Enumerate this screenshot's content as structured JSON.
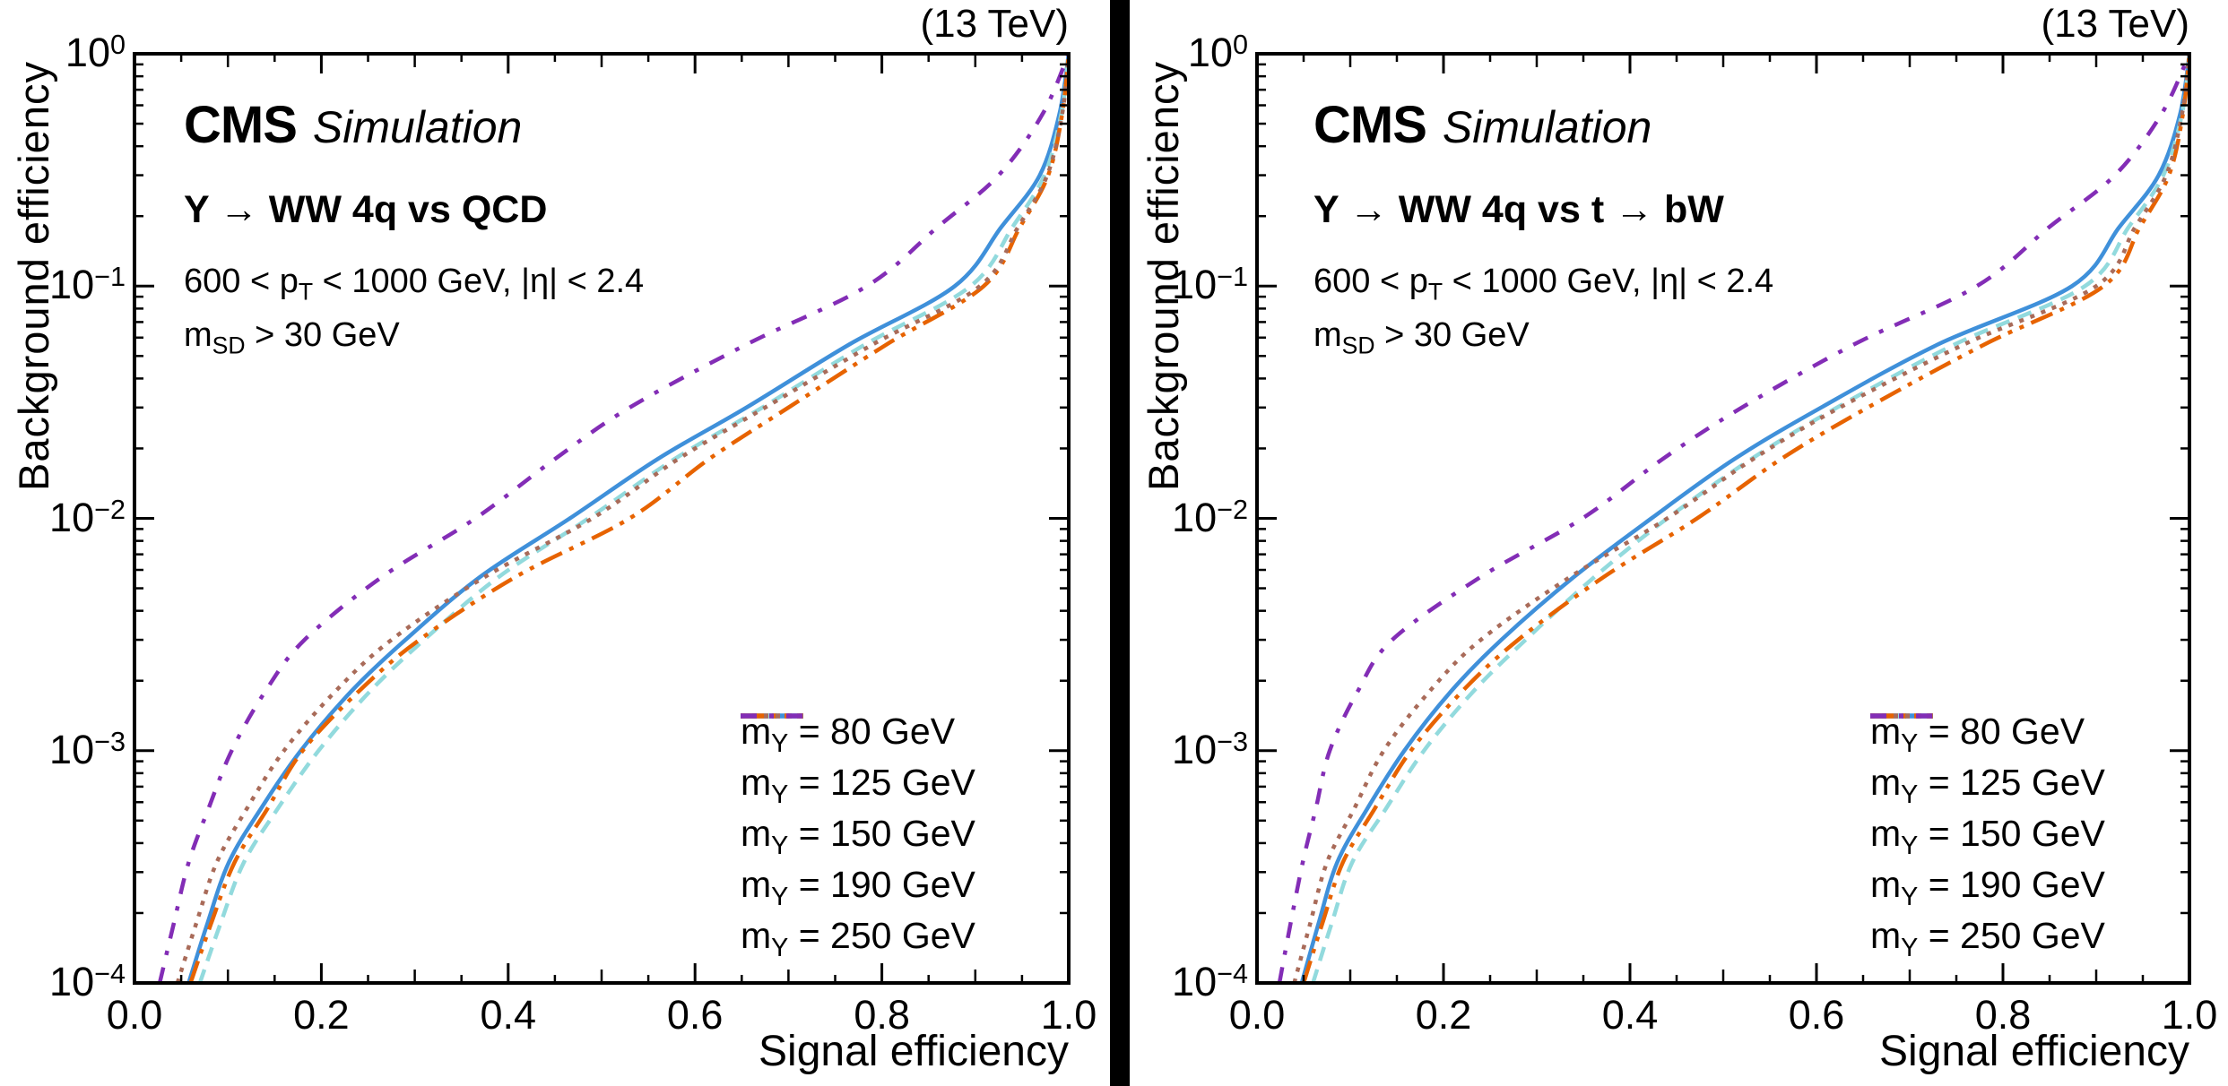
{
  "page": {
    "background": "#ffffff",
    "divider_color": "#000000"
  },
  "chart_data": [
    {
      "type": "line",
      "panel": "left",
      "lumi_label": "(13 TeV)",
      "experiment": "CMS",
      "experiment_sub": "Simulation",
      "process_label": "Y → WW 4q vs QCD",
      "selection_lines": [
        "600 < p~T~ < 1000 GeV, |η| < 2.4",
        "m~SD~ > 30 GeV"
      ],
      "xlabel": "Signal efficiency",
      "ylabel": "Background efficiency",
      "x_axis": {
        "min": 0.0,
        "max": 1.0,
        "major_ticks": [
          0.0,
          0.2,
          0.4,
          0.6,
          0.8,
          1.0
        ],
        "tick_labels": [
          "0.0",
          "0.2",
          "0.4",
          "0.6",
          "0.8",
          "1.0"
        ],
        "minor_step": 0.05
      },
      "y_axis": {
        "scale": "log",
        "min": 0.0001,
        "max": 1.0,
        "decades": [
          1,
          0.1,
          0.01,
          0.001,
          0.0001
        ],
        "tick_labels": [
          "10^{0}",
          "10^{−1}",
          "10^{−2}",
          "10^{−3}",
          "10^{−4}"
        ]
      },
      "legend_position": "lower-right",
      "grid": false,
      "series": [
        {
          "label": "m~Y~ = 80 GeV",
          "color": "#3f90da",
          "dasharray": "",
          "points": [
            [
              0.058,
              0.0001
            ],
            [
              0.078,
              0.00018
            ],
            [
              0.101,
              0.00033
            ],
            [
              0.135,
              0.00056
            ],
            [
              0.178,
              0.001
            ],
            [
              0.232,
              0.0018
            ],
            [
              0.29,
              0.003
            ],
            [
              0.37,
              0.0056
            ],
            [
              0.466,
              0.01
            ],
            [
              0.56,
              0.018
            ],
            [
              0.655,
              0.03
            ],
            [
              0.765,
              0.056
            ],
            [
              0.878,
              0.1
            ],
            [
              0.928,
              0.18
            ],
            [
              0.969,
              0.3
            ],
            [
              0.99,
              0.55
            ],
            [
              1.0,
              1.0
            ]
          ]
        },
        {
          "label": "m~Y~ = 125 GeV",
          "color": "#92dadd",
          "dasharray": "16 10",
          "points": [
            [
              0.07,
              0.0001
            ],
            [
              0.092,
              0.00018
            ],
            [
              0.117,
              0.00033
            ],
            [
              0.153,
              0.00056
            ],
            [
              0.197,
              0.001
            ],
            [
              0.252,
              0.0018
            ],
            [
              0.31,
              0.003
            ],
            [
              0.39,
              0.0056
            ],
            [
              0.486,
              0.01
            ],
            [
              0.578,
              0.018
            ],
            [
              0.672,
              0.03
            ],
            [
              0.782,
              0.056
            ],
            [
              0.895,
              0.1
            ],
            [
              0.94,
              0.18
            ],
            [
              0.974,
              0.3
            ],
            [
              0.992,
              0.55
            ],
            [
              1.0,
              1.0
            ]
          ]
        },
        {
          "label": "m~Y~ = 150 GeV",
          "color": "#e76300",
          "dasharray": "26 9 5 9 5 9",
          "points": [
            [
              0.06,
              0.0001
            ],
            [
              0.082,
              0.00018
            ],
            [
              0.107,
              0.00033
            ],
            [
              0.142,
              0.00056
            ],
            [
              0.18,
              0.001
            ],
            [
              0.24,
              0.0018
            ],
            [
              0.305,
              0.003
            ],
            [
              0.408,
              0.0056
            ],
            [
              0.53,
              0.01
            ],
            [
              0.615,
              0.018
            ],
            [
              0.7,
              0.03
            ],
            [
              0.805,
              0.056
            ],
            [
              0.909,
              0.1
            ],
            [
              0.948,
              0.18
            ],
            [
              0.978,
              0.3
            ],
            [
              0.993,
              0.55
            ],
            [
              1.0,
              1.0
            ]
          ]
        },
        {
          "label": "m~Y~ = 190 GeV",
          "color": "#a96b59",
          "dasharray": "5 8",
          "points": [
            [
              0.046,
              0.0001
            ],
            [
              0.066,
              0.00018
            ],
            [
              0.088,
              0.00033
            ],
            [
              0.12,
              0.00056
            ],
            [
              0.16,
              0.001
            ],
            [
              0.215,
              0.0018
            ],
            [
              0.275,
              0.003
            ],
            [
              0.375,
              0.0056
            ],
            [
              0.49,
              0.01
            ],
            [
              0.582,
              0.018
            ],
            [
              0.675,
              0.03
            ],
            [
              0.79,
              0.056
            ],
            [
              0.905,
              0.1
            ],
            [
              0.946,
              0.18
            ],
            [
              0.977,
              0.3
            ],
            [
              0.993,
              0.55
            ],
            [
              1.0,
              1.0
            ]
          ]
        },
        {
          "label": "m~Y~ = 250 GeV",
          "color": "#832db6",
          "dasharray": "18 14 5 14",
          "points": [
            [
              0.027,
              0.0001
            ],
            [
              0.042,
              0.00018
            ],
            [
              0.058,
              0.00033
            ],
            [
              0.079,
              0.00056
            ],
            [
              0.104,
              0.001
            ],
            [
              0.14,
              0.0018
            ],
            [
              0.182,
              0.003
            ],
            [
              0.265,
              0.0056
            ],
            [
              0.365,
              0.01
            ],
            [
              0.45,
              0.018
            ],
            [
              0.53,
              0.03
            ],
            [
              0.655,
              0.056
            ],
            [
              0.784,
              0.1
            ],
            [
              0.86,
              0.18
            ],
            [
              0.925,
              0.3
            ],
            [
              0.972,
              0.55
            ],
            [
              1.0,
              1.0
            ]
          ]
        }
      ]
    },
    {
      "type": "line",
      "panel": "right",
      "lumi_label": "(13 TeV)",
      "experiment": "CMS",
      "experiment_sub": "Simulation",
      "process_label": "Y → WW 4q vs t → bW",
      "selection_lines": [
        "600 < p~T~ < 1000 GeV, |η| < 2.4",
        "m~SD~ > 30 GeV"
      ],
      "xlabel": "Signal efficiency",
      "ylabel": "Background efficiency",
      "x_axis": {
        "min": 0.0,
        "max": 1.0,
        "major_ticks": [
          0.0,
          0.2,
          0.4,
          0.6,
          0.8,
          1.0
        ],
        "tick_labels": [
          "0.0",
          "0.2",
          "0.4",
          "0.6",
          "0.8",
          "1.0"
        ],
        "minor_step": 0.05
      },
      "y_axis": {
        "scale": "log",
        "min": 0.0001,
        "max": 1.0,
        "decades": [
          1,
          0.1,
          0.01,
          0.001,
          0.0001
        ],
        "tick_labels": [
          "10^{0}",
          "10^{−1}",
          "10^{−2}",
          "10^{−3}",
          "10^{−4}"
        ]
      },
      "legend_position": "lower-right",
      "grid": false,
      "series": [
        {
          "label": "m~Y~ = 80 GeV",
          "color": "#3f90da",
          "dasharray": "",
          "points": [
            [
              0.048,
              0.0001
            ],
            [
              0.066,
              0.00018
            ],
            [
              0.086,
              0.00033
            ],
            [
              0.118,
              0.00056
            ],
            [
              0.158,
              0.001
            ],
            [
              0.208,
              0.0018
            ],
            [
              0.262,
              0.003
            ],
            [
              0.34,
              0.0056
            ],
            [
              0.423,
              0.01
            ],
            [
              0.512,
              0.018
            ],
            [
              0.605,
              0.03
            ],
            [
              0.73,
              0.056
            ],
            [
              0.874,
              0.1
            ],
            [
              0.925,
              0.18
            ],
            [
              0.967,
              0.3
            ],
            [
              0.99,
              0.55
            ],
            [
              1.0,
              1.0
            ]
          ]
        },
        {
          "label": "m~Y~ = 125 GeV",
          "color": "#92dadd",
          "dasharray": "16 10",
          "points": [
            [
              0.06,
              0.0001
            ],
            [
              0.08,
              0.00018
            ],
            [
              0.102,
              0.00033
            ],
            [
              0.138,
              0.00056
            ],
            [
              0.179,
              0.001
            ],
            [
              0.232,
              0.0018
            ],
            [
              0.288,
              0.003
            ],
            [
              0.362,
              0.0056
            ],
            [
              0.44,
              0.01
            ],
            [
              0.53,
              0.018
            ],
            [
              0.622,
              0.03
            ],
            [
              0.748,
              0.056
            ],
            [
              0.888,
              0.1
            ],
            [
              0.935,
              0.18
            ],
            [
              0.972,
              0.3
            ],
            [
              0.992,
              0.55
            ],
            [
              1.0,
              1.0
            ]
          ]
        },
        {
          "label": "m~Y~ = 150 GeV",
          "color": "#e76300",
          "dasharray": "26 9 5 9 5 9",
          "points": [
            [
              0.05,
              0.0001
            ],
            [
              0.07,
              0.00018
            ],
            [
              0.092,
              0.00033
            ],
            [
              0.126,
              0.00056
            ],
            [
              0.165,
              0.001
            ],
            [
              0.22,
              0.0018
            ],
            [
              0.28,
              0.003
            ],
            [
              0.372,
              0.0056
            ],
            [
              0.472,
              0.01
            ],
            [
              0.562,
              0.018
            ],
            [
              0.655,
              0.03
            ],
            [
              0.78,
              0.056
            ],
            [
              0.908,
              0.1
            ],
            [
              0.947,
              0.18
            ],
            [
              0.978,
              0.3
            ],
            [
              0.993,
              0.55
            ],
            [
              1.0,
              1.0
            ]
          ]
        },
        {
          "label": "m~Y~ = 190 GeV",
          "color": "#a96b59",
          "dasharray": "5 8",
          "points": [
            [
              0.04,
              0.0001
            ],
            [
              0.057,
              0.00018
            ],
            [
              0.075,
              0.00033
            ],
            [
              0.104,
              0.00056
            ],
            [
              0.136,
              0.001
            ],
            [
              0.185,
              0.0018
            ],
            [
              0.24,
              0.003
            ],
            [
              0.336,
              0.0056
            ],
            [
              0.44,
              0.01
            ],
            [
              0.532,
              0.018
            ],
            [
              0.625,
              0.03
            ],
            [
              0.758,
              0.056
            ],
            [
              0.9,
              0.1
            ],
            [
              0.942,
              0.18
            ],
            [
              0.975,
              0.3
            ],
            [
              0.992,
              0.55
            ],
            [
              1.0,
              1.0
            ]
          ]
        },
        {
          "label": "m~Y~ = 250 GeV",
          "color": "#832db6",
          "dasharray": "18 14 5 14",
          "points": [
            [
              0.024,
              0.0001
            ],
            [
              0.036,
              0.00018
            ],
            [
              0.049,
              0.00033
            ],
            [
              0.063,
              0.00056
            ],
            [
              0.078,
              0.001
            ],
            [
              0.108,
              0.0018
            ],
            [
              0.145,
              0.003
            ],
            [
              0.24,
              0.0056
            ],
            [
              0.349,
              0.01
            ],
            [
              0.435,
              0.018
            ],
            [
              0.52,
              0.03
            ],
            [
              0.64,
              0.056
            ],
            [
              0.772,
              0.1
            ],
            [
              0.85,
              0.18
            ],
            [
              0.92,
              0.3
            ],
            [
              0.97,
              0.55
            ],
            [
              1.0,
              1.0
            ]
          ]
        }
      ]
    }
  ]
}
